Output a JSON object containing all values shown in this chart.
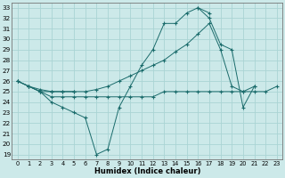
{
  "xlabel": "Humidex (Indice chaleur)",
  "bg_color": "#cce9e9",
  "grid_color": "#aad4d4",
  "line_color": "#1a6b6b",
  "xlim": [
    -0.5,
    23.5
  ],
  "ylim": [
    18.5,
    33.5
  ],
  "yticks": [
    19,
    20,
    21,
    22,
    23,
    24,
    25,
    26,
    27,
    28,
    29,
    30,
    31,
    32,
    33
  ],
  "xticks": [
    0,
    1,
    2,
    3,
    4,
    5,
    6,
    7,
    8,
    9,
    10,
    11,
    12,
    13,
    14,
    15,
    16,
    17,
    18,
    19,
    20,
    21,
    22,
    23
  ],
  "line1_x": [
    0,
    1,
    2,
    3,
    4,
    5,
    6,
    7,
    8,
    9,
    10,
    11,
    12,
    13,
    14,
    15,
    16,
    17
  ],
  "line1_y": [
    26.0,
    25.5,
    25.0,
    24.0,
    23.5,
    23.0,
    22.5,
    19.0,
    19.5,
    23.5,
    25.5,
    27.5,
    29.0,
    31.5,
    31.5,
    32.5,
    33.0,
    32.5
  ],
  "line2_x": [
    0,
    1,
    2,
    3,
    4,
    5,
    6,
    7,
    8,
    9,
    10,
    11,
    12,
    13,
    14,
    15,
    16,
    17,
    18,
    19,
    20,
    21
  ],
  "line2_y": [
    26.0,
    25.5,
    25.2,
    25.0,
    25.0,
    25.0,
    25.0,
    25.2,
    25.5,
    26.0,
    26.5,
    27.0,
    27.5,
    28.0,
    28.8,
    29.5,
    30.5,
    31.5,
    29.0,
    25.5,
    25.0,
    25.5
  ],
  "line3a_x": [
    0,
    1,
    2,
    3,
    4,
    5
  ],
  "line3a_y": [
    26.0,
    25.5,
    25.0,
    25.0,
    25.0,
    25.0
  ],
  "line3b_x": [
    16,
    17,
    18,
    19,
    20,
    21
  ],
  "line3b_y": [
    33.0,
    32.0,
    29.5,
    29.0,
    23.5,
    25.5
  ],
  "line4_x": [
    1,
    2,
    3,
    4,
    5,
    6,
    7,
    8,
    9,
    10,
    11,
    12,
    13,
    14,
    15,
    16,
    17,
    18,
    19,
    20,
    21,
    22,
    23
  ],
  "line4_y": [
    25.5,
    25.0,
    24.5,
    24.5,
    24.5,
    24.5,
    24.5,
    24.5,
    24.5,
    24.5,
    24.5,
    24.5,
    25.0,
    25.0,
    25.0,
    25.0,
    25.0,
    25.0,
    25.0,
    25.0,
    25.0,
    25.0,
    25.5
  ]
}
